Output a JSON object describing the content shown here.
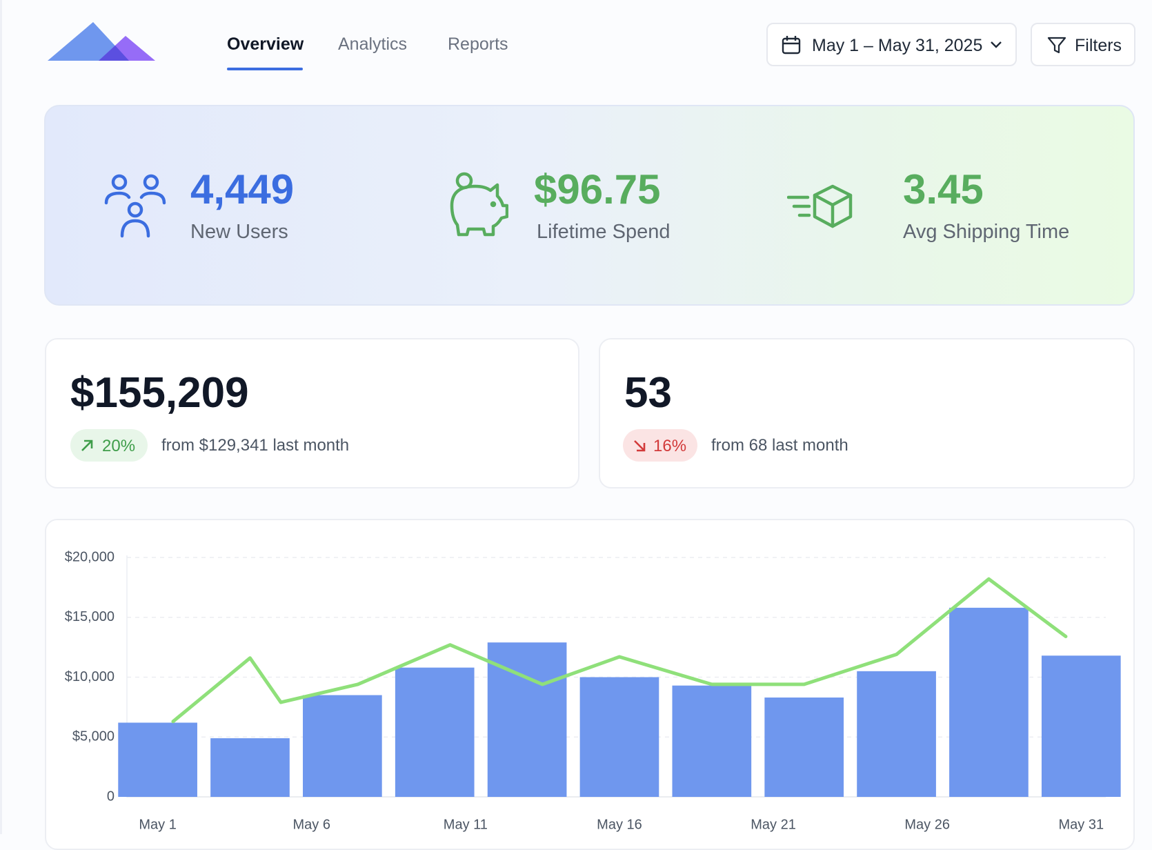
{
  "nav": {
    "tabs": [
      "Overview",
      "Analytics",
      "Reports"
    ],
    "date_range": "May 1 – May 31, 2025",
    "filters": "Filters"
  },
  "kpis": [
    {
      "value": "4,449",
      "label": "New Users"
    },
    {
      "value": "$96.75",
      "label": "Lifetime Spend"
    },
    {
      "value": "3.45",
      "label": "Avg Shipping Time"
    }
  ],
  "cards": [
    {
      "value": "$155,209",
      "change": "20%",
      "note": "from $129,341 last month"
    },
    {
      "value": "53",
      "change": "16%",
      "note": "from 68 last month"
    }
  ],
  "chart_data": {
    "type": "bar",
    "series": [
      {
        "type": "bar",
        "color": "#6f97ee",
        "x": [
          1,
          4,
          7,
          10,
          13,
          16,
          19,
          22,
          25,
          28,
          31
        ],
        "values": [
          6200,
          4900,
          8500,
          10800,
          12900,
          10000,
          9300,
          8300,
          10500,
          15800,
          11800
        ]
      },
      {
        "type": "line",
        "color": "#8fe07a",
        "x": [
          1.5,
          4,
          5,
          7.5,
          10.5,
          13.5,
          16,
          19,
          22,
          25,
          28,
          30.5
        ],
        "values": [
          6300,
          11600,
          7900,
          9400,
          12700,
          9400,
          11700,
          9400,
          9400,
          11900,
          18200,
          13400
        ]
      }
    ],
    "xlim": [
      0,
      31.8
    ],
    "xticks": [
      {
        "value": 1,
        "label": "May 1"
      },
      {
        "value": 6,
        "label": "May 6"
      },
      {
        "value": 11,
        "label": "May 11"
      },
      {
        "value": 16,
        "label": "May 16"
      },
      {
        "value": 21,
        "label": "May 21"
      },
      {
        "value": 26,
        "label": "May 26"
      },
      {
        "value": 31,
        "label": "May 31"
      }
    ],
    "ylim": [
      0,
      20000
    ],
    "yticks": [
      0,
      {
        "value": 5000,
        "label": "$5,000"
      },
      {
        "value": 10000,
        "label": "$10,000"
      },
      {
        "value": 15000,
        "label": "$15,000"
      },
      {
        "value": 20000,
        "label": "$20,000"
      }
    ],
    "grid": true
  }
}
